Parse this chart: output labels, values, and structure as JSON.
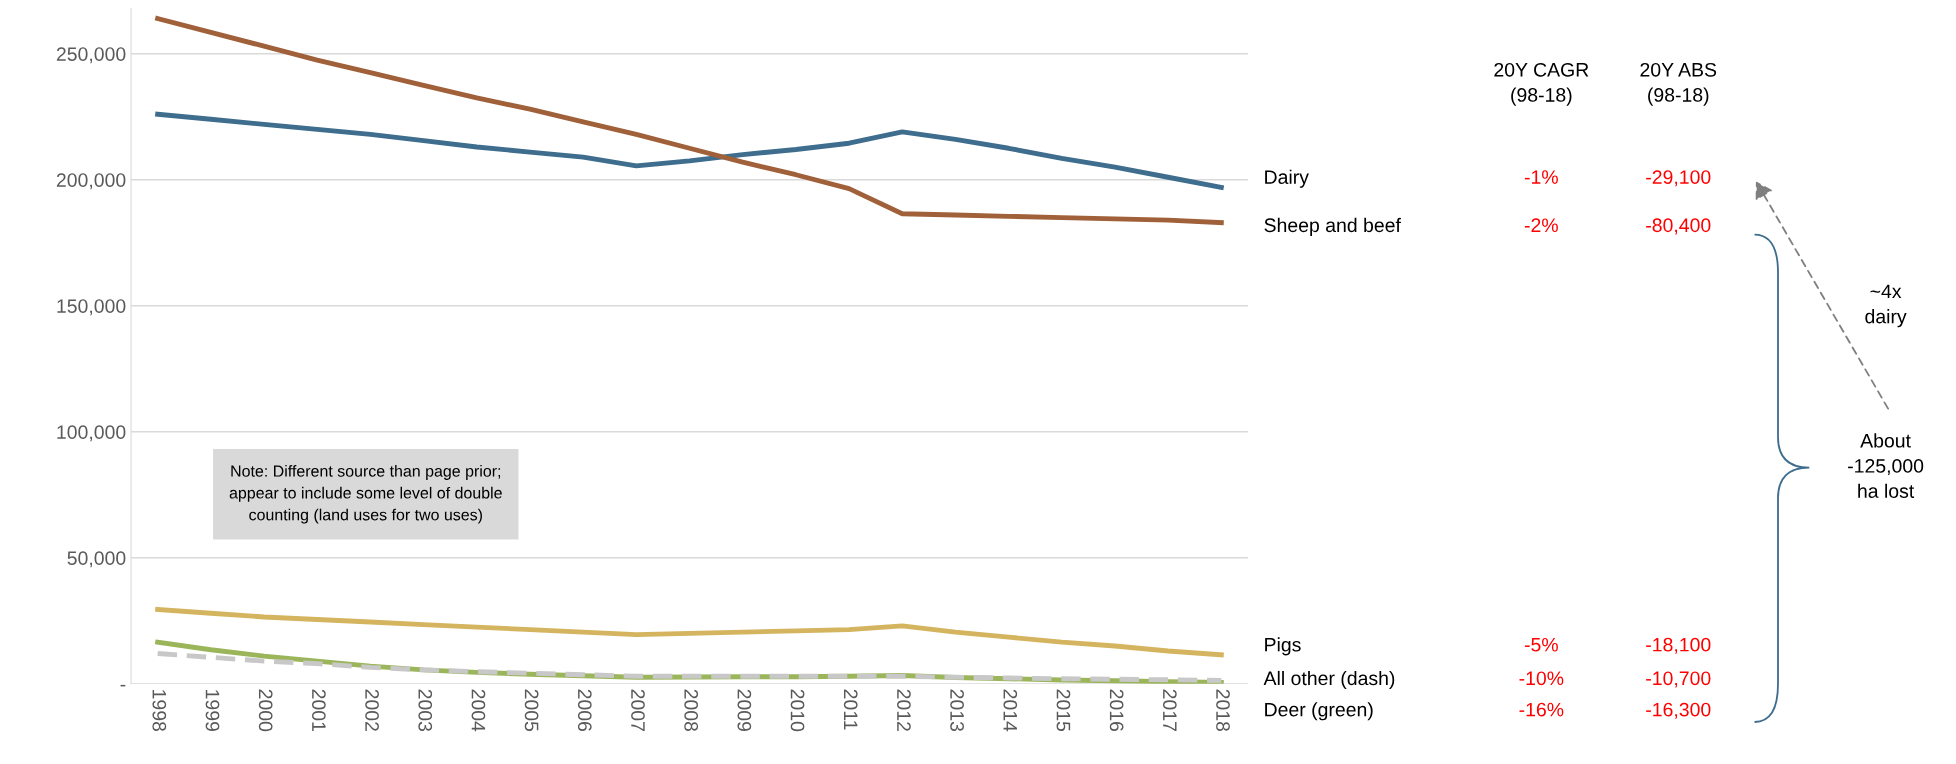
{
  "chart_data": {
    "type": "line",
    "categories": [
      "1998",
      "1999",
      "2000",
      "2001",
      "2002",
      "2003",
      "2004",
      "2005",
      "2006",
      "2007",
      "2008",
      "2009",
      "2010",
      "2011",
      "2012",
      "2013",
      "2014",
      "2015",
      "2016",
      "2017",
      "2018"
    ],
    "series": [
      {
        "name": "Dairy",
        "color": "#3e6d8e",
        "values": [
          226000,
          224000,
          222000,
          220000,
          218000,
          215500,
          213000,
          211000,
          209000,
          205500,
          207500,
          210000,
          212000,
          214500,
          219000,
          216000,
          212500,
          208500,
          205000,
          201000,
          197000
        ]
      },
      {
        "name": "Sheep and beef",
        "color": "#a0613a",
        "values": [
          264000,
          258500,
          253000,
          247500,
          242500,
          237500,
          232500,
          228000,
          223000,
          218000,
          212500,
          207000,
          202000,
          196500,
          186500,
          186000,
          185500,
          185000,
          184500,
          184000,
          183000
        ]
      },
      {
        "name": "Pigs",
        "color": "#d4b45e",
        "values": [
          29500,
          28000,
          26500,
          25500,
          24500,
          23500,
          22500,
          21500,
          20500,
          19500,
          20000,
          20500,
          21000,
          21500,
          23000,
          20500,
          18500,
          16500,
          15000,
          13000,
          11500
        ]
      },
      {
        "name": "All other (dash)",
        "color": "#c8c8c8",
        "line_style": "dashed",
        "values": [
          12000,
          10500,
          9000,
          8000,
          6500,
          5500,
          4800,
          4200,
          3600,
          3000,
          3000,
          3000,
          3000,
          3000,
          3000,
          2600,
          2300,
          2000,
          1800,
          1600,
          1300
        ]
      },
      {
        "name": "Deer (green)",
        "color": "#9bb55a",
        "values": [
          16500,
          13500,
          11000,
          9000,
          7000,
          5500,
          4500,
          3800,
          3200,
          2600,
          2700,
          2800,
          2800,
          3000,
          3300,
          2500,
          2000,
          1500,
          1200,
          800,
          500
        ]
      }
    ],
    "ylim": [
      0,
      268000
    ],
    "yticks": [
      {
        "value": 0,
        "label": "-"
      },
      {
        "value": 50000,
        "label": "50,000"
      },
      {
        "value": 100000,
        "label": "100,000"
      },
      {
        "value": 150000,
        "label": "150,000"
      },
      {
        "value": 200000,
        "label": "200,000"
      },
      {
        "value": 250000,
        "label": "250,000"
      }
    ],
    "grid": "y",
    "legend": false,
    "line_style": "solid",
    "annotations": [
      "20Y CAGR\n(98-18)",
      "20Y ABS\n(98-18)",
      "-1%",
      "-29,100",
      "-2%",
      "-80,400",
      "-5%",
      "-18,100",
      "-10%",
      "-10,700",
      "-16%",
      "-16,300",
      "~4x\ndairy",
      "About\n-125,000\nha lost",
      "Note: Different source than page prior;\nappear to include some level of double\ncounting (land uses for two uses)"
    ]
  }
}
